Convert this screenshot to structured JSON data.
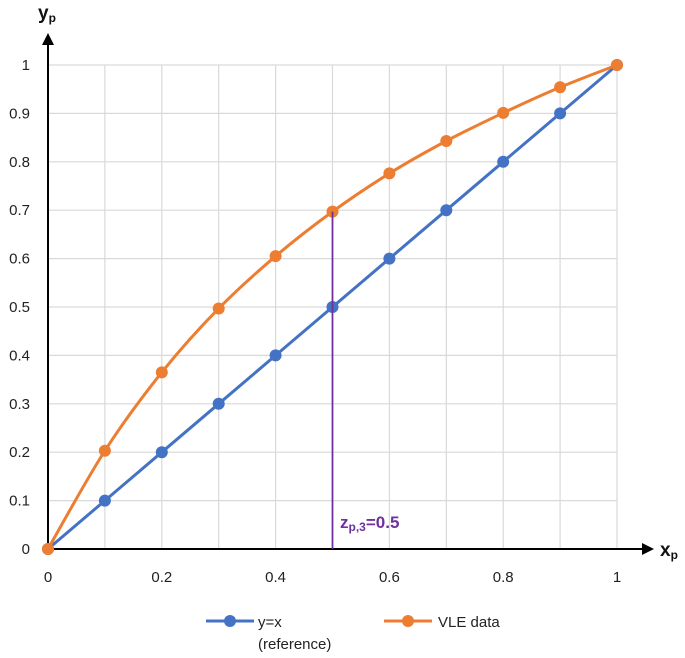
{
  "chart_data": {
    "type": "line",
    "x_axis": {
      "label": "x",
      "label_sub": "p",
      "min": 0,
      "max": 1,
      "ticks": [
        0,
        0.2,
        0.4,
        0.6,
        0.8,
        1
      ],
      "tick_labels": [
        "0",
        "0.2",
        "0.4",
        "0.6",
        "0.8",
        "1"
      ]
    },
    "y_axis": {
      "label": "y",
      "label_sub": "p",
      "min": 0,
      "max": 1,
      "ticks": [
        0,
        0.1,
        0.2,
        0.3,
        0.4,
        0.5,
        0.6,
        0.7,
        0.8,
        0.9,
        1
      ],
      "tick_labels": [
        "0",
        "0.1",
        "0.2",
        "0.3",
        "0.4",
        "0.5",
        "0.6",
        "0.7",
        "0.8",
        "0.9",
        "1"
      ]
    },
    "grid": true,
    "legend_position": "bottom",
    "series": [
      {
        "name": "y=x",
        "name_line2": "(reference)",
        "color": "#4472C4",
        "x": [
          0,
          0.1,
          0.2,
          0.3,
          0.4,
          0.5,
          0.6,
          0.7,
          0.8,
          0.9,
          1
        ],
        "y": [
          0,
          0.1,
          0.2,
          0.3,
          0.4,
          0.5,
          0.6,
          0.7,
          0.8,
          0.9,
          1
        ]
      },
      {
        "name": "VLE data",
        "color": "#ED7D31",
        "x": [
          0,
          0.1,
          0.2,
          0.3,
          0.4,
          0.5,
          0.6,
          0.7,
          0.8,
          0.9,
          1
        ],
        "y": [
          0,
          0.203,
          0.365,
          0.497,
          0.605,
          0.697,
          0.776,
          0.843,
          0.901,
          0.954,
          1
        ]
      }
    ],
    "annotation": {
      "text_main": "z",
      "text_sub": "p,3",
      "text_value": "=0.5",
      "x": 0.5,
      "y_from": 0,
      "y_to": 0.697,
      "color": "#7030A0"
    }
  }
}
